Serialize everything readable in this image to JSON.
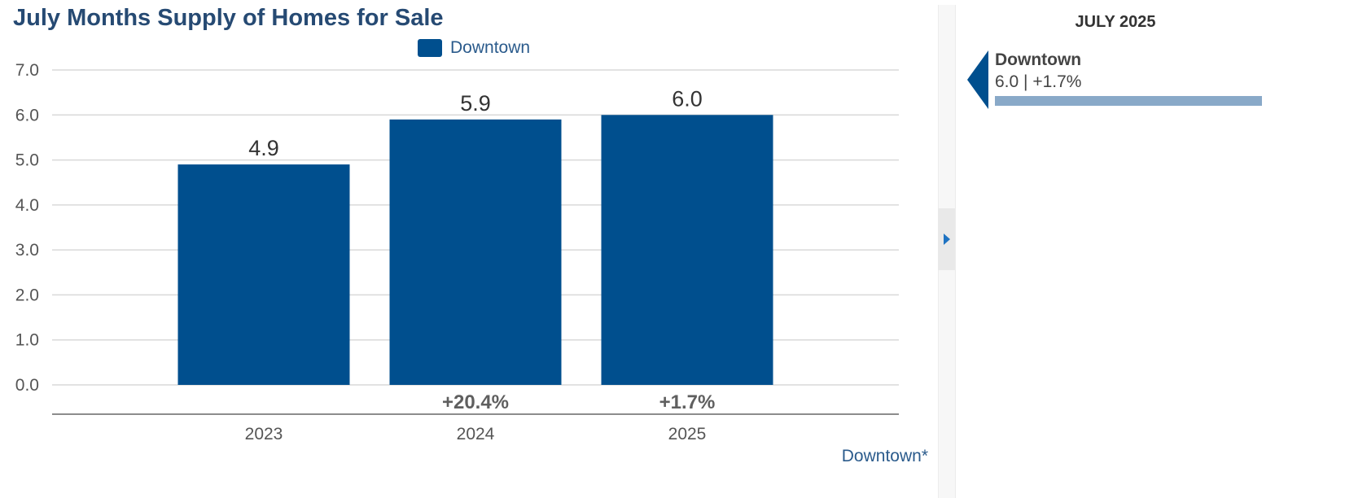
{
  "title": "July Months Supply of Homes for Sale",
  "legend": {
    "label": "Downtown",
    "color": "#004f8e"
  },
  "footnote": "Downtown*",
  "chart_data": {
    "type": "bar",
    "title": "July Months Supply of Homes for Sale",
    "categories": [
      "2023",
      "2024",
      "2025"
    ],
    "series": [
      {
        "name": "Downtown",
        "values": [
          4.9,
          5.9,
          6.0
        ],
        "color": "#004f8e"
      }
    ],
    "data_labels": [
      "4.9",
      "5.9",
      "6.0"
    ],
    "changes": [
      "",
      "+20.4%",
      "+1.7%"
    ],
    "ylim": [
      0,
      7
    ],
    "yticks": [
      "0.0",
      "1.0",
      "2.0",
      "3.0",
      "4.0",
      "5.0",
      "6.0",
      "7.0"
    ],
    "ytick_values": [
      0,
      1,
      2,
      3,
      4,
      5,
      6,
      7
    ],
    "grid": true,
    "xlabel": "",
    "ylabel": ""
  },
  "side_panel": {
    "title": "JULY 2025",
    "item": {
      "name": "Downtown",
      "value": "6.0 | +1.7%",
      "color": "#004f8e",
      "bar_color": "#89a9c8"
    }
  }
}
